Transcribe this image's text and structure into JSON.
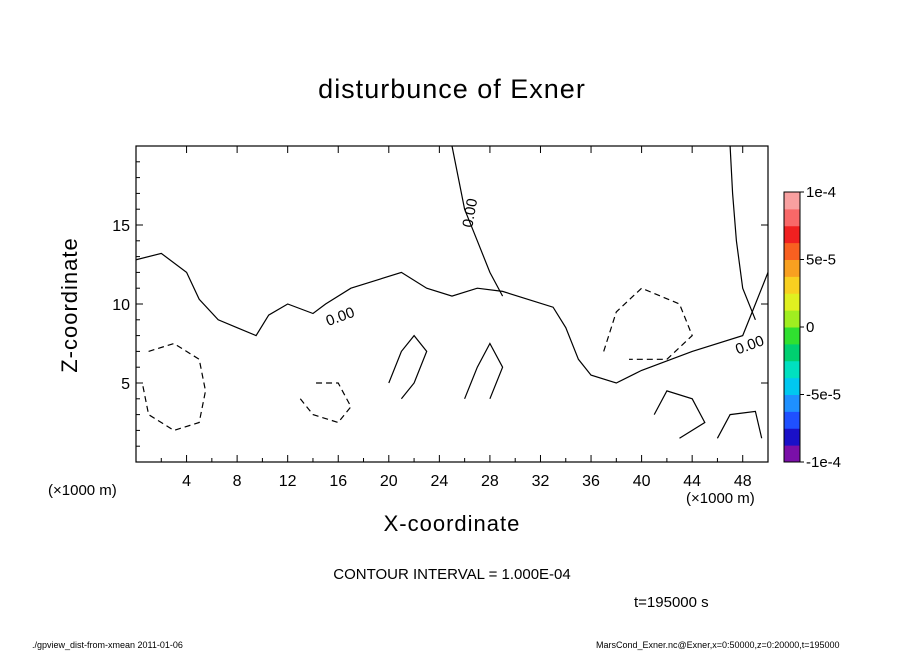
{
  "chart_data": {
    "type": "heatmap",
    "title": "disturbunce of Exner",
    "xlabel": "X-coordinate",
    "ylabel": "Z-coordinate",
    "x_unit_left": "(×1000 m)",
    "x_unit_right": "(×1000 m)",
    "xlim": [
      0,
      50
    ],
    "ylim": [
      0,
      20
    ],
    "x_ticks": [
      4,
      8,
      12,
      16,
      20,
      24,
      28,
      32,
      36,
      40,
      44,
      48
    ],
    "x_tick_labels": [
      "4",
      "8",
      "12",
      "16",
      "20",
      "24",
      "28",
      "32",
      "36",
      "40",
      "44",
      "48"
    ],
    "y_ticks": [
      5,
      10,
      15
    ],
    "y_tick_labels": [
      "5",
      "10",
      "15"
    ],
    "colorbar": {
      "min": -0.0001,
      "max": 0.0001,
      "ticks": [
        0.0001,
        5e-05,
        0,
        -5e-05,
        -0.0001
      ],
      "tick_labels": [
        "1e-4",
        "5e-5",
        "0",
        "-5e-5",
        "-1e-4"
      ],
      "colors": [
        "#7a0fa8",
        "#1a10c8",
        "#1f50ff",
        "#1e90ff",
        "#00c8f0",
        "#00e0c0",
        "#00d070",
        "#30e030",
        "#a0ee20",
        "#e0f020",
        "#f8d020",
        "#f8a020",
        "#f86020",
        "#f02020",
        "#f86868",
        "#f8a0a0"
      ]
    },
    "contour_interval": "CONTOUR INTERVAL = 1.000E-04",
    "contour_labels": [
      "0.00",
      "0.00",
      "0.00"
    ],
    "time_label": "t=195000 s",
    "footer_left": "./gpview_dist-from-xmean  2011-01-06",
    "footer_right": "MarsCond_Exner.nc@Exner,x=0:50000,z=0:20000,t=195000"
  }
}
